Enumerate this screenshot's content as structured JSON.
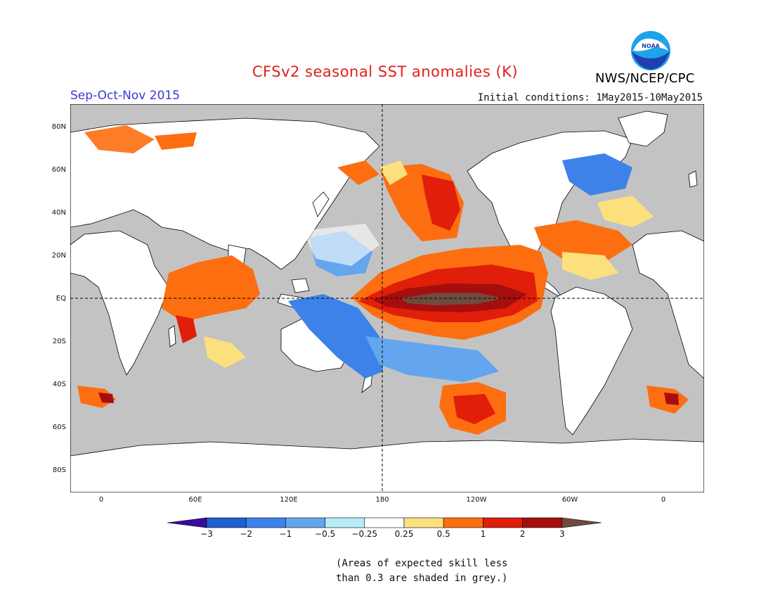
{
  "title": "CFSv2 seasonal SST anomalies (K)",
  "season": "Sep-Oct-Nov 2015",
  "initial_conditions": "Initial conditions: 1May2015-10May2015",
  "agency": "NWS/NCEP/CPC",
  "logo_text": "NOAA",
  "lat_labels": [
    "80N",
    "60N",
    "40N",
    "20N",
    "EQ",
    "20S",
    "40S",
    "60S",
    "80S"
  ],
  "lon_labels": [
    "0",
    "60E",
    "120E",
    "180",
    "120W",
    "60W",
    "0"
  ],
  "colorbar": {
    "ticks": [
      "-3",
      "-2",
      "-1",
      "-0.5",
      "-0.25",
      "0.25",
      "0.5",
      "1",
      "2",
      "3"
    ],
    "colors": [
      "#3b0ba0",
      "#1f5fd0",
      "#3d82e8",
      "#64a6ee",
      "#b6ecf5",
      "#ffffff",
      "#fce07d",
      "#fd6e11",
      "#e01e09",
      "#a50e0f",
      "#6e4b3e"
    ]
  },
  "note_line1": "(Areas of expected skill less",
  "note_line2": "than 0.3 are shaded in grey.)",
  "colors": {
    "land": "#ffffff",
    "low_skill": "#c3c3c3",
    "coast": "#000000"
  }
}
